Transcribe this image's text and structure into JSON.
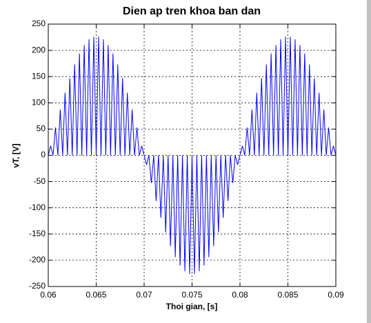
{
  "chart_data": {
    "type": "line",
    "title": "Dien ap tren khoa ban dan",
    "x_label": "Thoi gian, [s]",
    "y_label": "vT, [V]",
    "x": [
      0.06,
      0.06025,
      0.0605,
      0.06075,
      0.061,
      0.06125,
      0.0615,
      0.06175,
      0.062,
      0.06225,
      0.0625,
      0.06275,
      0.063,
      0.06325,
      0.0635,
      0.06375,
      0.064,
      0.06425,
      0.0645,
      0.06475,
      0.065,
      0.06525,
      0.0655,
      0.06575,
      0.066,
      0.06625,
      0.0665,
      0.06675,
      0.067,
      0.06725,
      0.0675,
      0.06775,
      0.068,
      0.06825,
      0.0685,
      0.06875,
      0.069,
      0.06925,
      0.0695,
      0.06975,
      0.07,
      0.07025,
      0.0705,
      0.07075,
      0.071,
      0.07125,
      0.0715,
      0.07175,
      0.072,
      0.07225,
      0.0725,
      0.07275,
      0.073,
      0.07325,
      0.0735,
      0.07375,
      0.074,
      0.07425,
      0.0745,
      0.07475,
      0.075,
      0.07525,
      0.0755,
      0.07575,
      0.076,
      0.07625,
      0.0765,
      0.07675,
      0.077,
      0.07725,
      0.0775,
      0.07775,
      0.078,
      0.07825,
      0.0785,
      0.07875,
      0.079,
      0.07925,
      0.0795,
      0.07975,
      0.08,
      0.08025,
      0.0805,
      0.08075,
      0.081,
      0.08125,
      0.0815,
      0.08175,
      0.082,
      0.08225,
      0.0825,
      0.08275,
      0.083,
      0.08325,
      0.0835,
      0.08375,
      0.084,
      0.08425,
      0.0845,
      0.08475,
      0.085,
      0.08525,
      0.0855,
      0.08575,
      0.086,
      0.08625,
      0.0865,
      0.08675,
      0.087,
      0.08725,
      0.0875,
      0.08775,
      0.088,
      0.08825,
      0.0885,
      0.08875,
      0.089,
      0.08925,
      0.0895,
      0.08975,
      0.09
    ],
    "series": [
      {
        "color": "#0000ff",
        "values": [
          0,
          18,
          0,
          53,
          0,
          87,
          0,
          119,
          0,
          147,
          0,
          173,
          0,
          194,
          0,
          210,
          0,
          221,
          0,
          226,
          0,
          226,
          0,
          221,
          0,
          210,
          0,
          194,
          0,
          173,
          0,
          147,
          0,
          119,
          0,
          87,
          0,
          53,
          0,
          18,
          0,
          -18,
          0,
          -53,
          0,
          -87,
          0,
          -119,
          0,
          -147,
          0,
          -173,
          0,
          -194,
          0,
          -210,
          0,
          -221,
          0,
          -226,
          0,
          -226,
          0,
          -221,
          0,
          -210,
          0,
          -194,
          0,
          -173,
          0,
          -147,
          0,
          -119,
          0,
          -87,
          0,
          -53,
          0,
          -18,
          0,
          18,
          0,
          53,
          0,
          87,
          0,
          119,
          0,
          147,
          0,
          173,
          0,
          194,
          0,
          210,
          0,
          221,
          0,
          226,
          0,
          226,
          0,
          221,
          0,
          210,
          0,
          194,
          0,
          173,
          0,
          147,
          0,
          119,
          0,
          87,
          0,
          53,
          0,
          18,
          0
        ]
      }
    ],
    "xlim": [
      0.06,
      0.09
    ],
    "xticks": [
      0.06,
      0.065,
      0.07,
      0.075,
      0.08,
      0.085,
      0.09
    ],
    "ylim": [
      -250,
      250
    ],
    "yticks": [
      -250,
      -200,
      -150,
      -100,
      -50,
      0,
      50,
      100,
      150,
      200,
      250
    ],
    "grid": true
  }
}
